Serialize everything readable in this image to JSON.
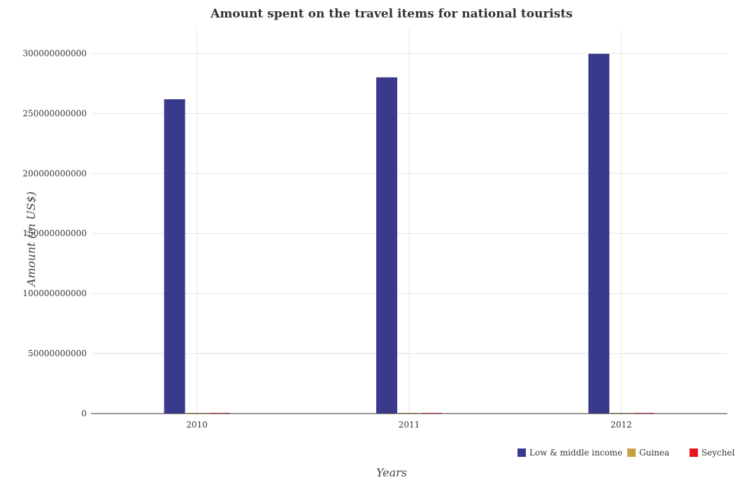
{
  "chart_data": {
    "type": "bar",
    "title": "Amount spent on the travel items for national tourists",
    "xlabel": "Years",
    "ylabel": "Amount (in US$)",
    "categories": [
      "2010",
      "2011",
      "2012"
    ],
    "series": [
      {
        "name": "Low & middle income",
        "color": "#3a3a8c",
        "values": [
          261800000000,
          280000000000,
          299600000000
        ]
      },
      {
        "name": "Guinea",
        "color": "#c8a040",
        "values": [
          2000000,
          1900000,
          2200000
        ]
      },
      {
        "name": "Seychelles",
        "color": "#e8141e",
        "values": [
          343000000,
          291000000,
          310000000
        ]
      }
    ],
    "ylim": [
      0,
      320000000000
    ],
    "yticks": [
      0,
      50000000000,
      100000000000,
      150000000000,
      200000000000,
      250000000000,
      300000000000
    ],
    "ytick_labels": [
      "0",
      "50000000000",
      "100000000000",
      "150000000000",
      "200000000000",
      "250000000000",
      "300000000000"
    ],
    "grid": true,
    "legend_position": "bottom-right"
  }
}
